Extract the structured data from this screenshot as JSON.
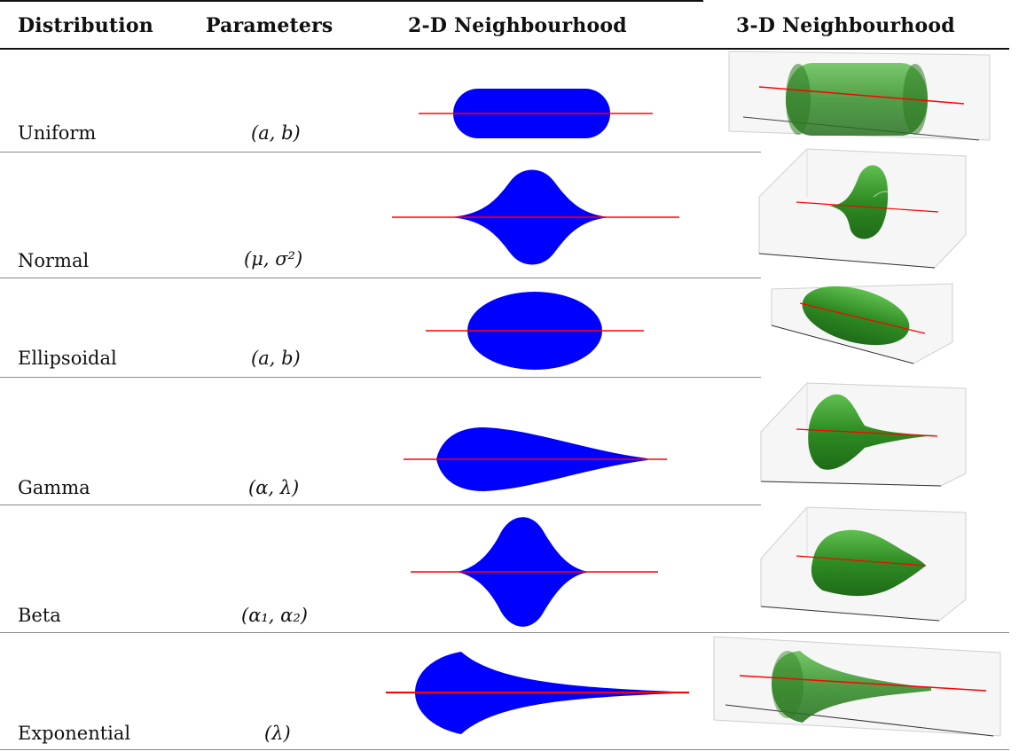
{
  "headers": {
    "distribution": "Distribution",
    "parameters": "Parameters",
    "neighbourhood_2d": "2-D Neighbourhood",
    "neighbourhood_3d": "3-D Neighbourhood"
  },
  "rows": [
    {
      "distribution": "Uniform",
      "parameters": "(a, b)"
    },
    {
      "distribution": "Normal",
      "parameters": "(μ, σ²)"
    },
    {
      "distribution": "Ellipsoidal",
      "parameters": "(a, b)"
    },
    {
      "distribution": "Gamma",
      "parameters": "(α, λ)"
    },
    {
      "distribution": "Beta",
      "parameters": "(α₁, α₂)"
    },
    {
      "distribution": "Exponential",
      "parameters": "(λ)"
    }
  ],
  "colors": {
    "shape_2d": "#0000ff",
    "shape_3d": "#2e8b22",
    "axis_line": "#ff0000",
    "rule": "#111111"
  }
}
